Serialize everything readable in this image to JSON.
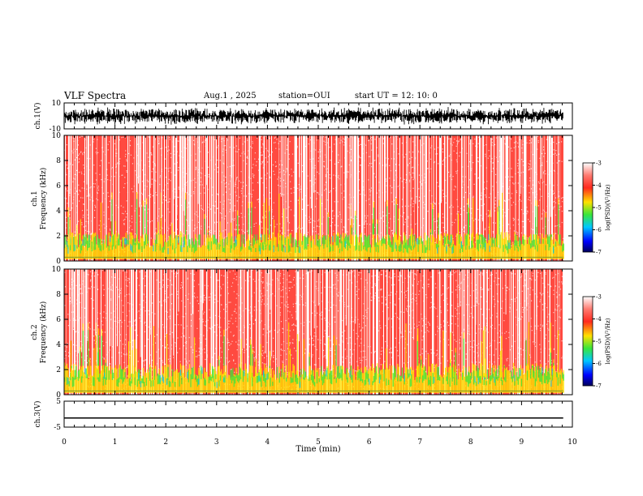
{
  "header": {
    "title": "VLF Spectra",
    "date": "Aug.1 , 2025",
    "station": "station=OUI",
    "start": "start UT = 12: 10: 0"
  },
  "colors": {
    "spectrum": [
      "#ffffff",
      "#ff2a1e",
      "#ffe100",
      "#39e63a",
      "#00c8ff",
      "#0000ff",
      "#00005a"
    ],
    "trace": "#000000",
    "background": "#ffffff"
  },
  "chart_data": [
    {
      "type": "line",
      "panel": "ch1-waveform",
      "ylabel": "ch.1(V)",
      "ylim": [
        -10,
        10
      ],
      "yticks": [
        "10",
        "-10"
      ],
      "xlim": [
        0,
        10
      ],
      "description_of_series": "dense broadband waveform, roughly +-7 V",
      "amplitude_v": 7
    },
    {
      "type": "heatmap",
      "panel": "ch1-spectrogram",
      "ylabel_line1": "ch.1",
      "ylabel_line2": "Frequency (kHz)",
      "ylim": [
        0,
        10
      ],
      "yticks": [
        "0",
        "2",
        "4",
        "6",
        "8",
        "10"
      ],
      "xlim": [
        0,
        10
      ],
      "colorbar": {
        "label": "log(PSD)(V²/Hz)",
        "range": [
          -7,
          -3
        ],
        "ticks": [
          "-3",
          "-4",
          "-5",
          "-6",
          "-7"
        ]
      },
      "band_top_khz": 2.1,
      "data_end_min": 9.82
    },
    {
      "type": "heatmap",
      "panel": "ch2-spectrogram",
      "ylabel_line1": "ch.2",
      "ylabel_line2": "Frequency (kHz)",
      "ylim": [
        0,
        10
      ],
      "yticks": [
        "0",
        "2",
        "4",
        "6",
        "8",
        "10"
      ],
      "xlim": [
        0,
        10
      ],
      "colorbar": {
        "label": "log(PSD)(V²/Hz)",
        "range": [
          -7,
          -3
        ],
        "ticks": [
          "-3",
          "-4",
          "-5",
          "-6",
          "-7"
        ]
      },
      "band_top_khz": 2.3,
      "data_end_min": 9.82
    },
    {
      "type": "line",
      "panel": "ch3-waveform",
      "ylabel": "ch.3(V)",
      "ylim": [
        -5,
        5
      ],
      "yticks": [
        "5",
        "-5"
      ],
      "xlim": [
        0,
        10
      ],
      "x": [
        0,
        9.82
      ],
      "y": [
        -1.5,
        -1.5
      ]
    }
  ],
  "xaxis": {
    "label": "Time (min)",
    "ticks": [
      "0",
      "1",
      "2",
      "3",
      "4",
      "5",
      "6",
      "7",
      "8",
      "9",
      "10"
    ]
  }
}
